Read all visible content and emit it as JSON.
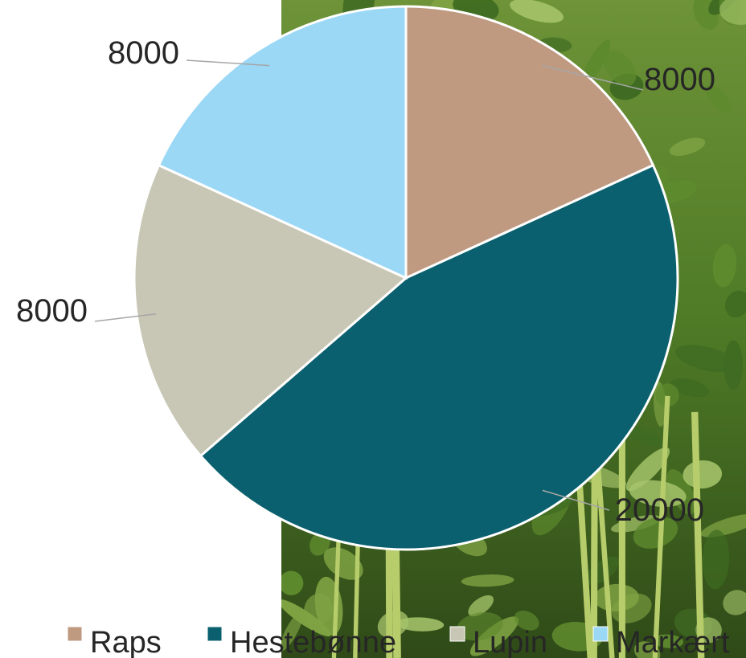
{
  "chart_data": {
    "type": "pie",
    "categories": [
      "Raps",
      "Hestebønne",
      "Lupin",
      "Markært"
    ],
    "values": [
      8000,
      20000,
      8000,
      8000
    ],
    "colors": [
      "#BF9A80",
      "#0A606E",
      "#C8C7B5",
      "#9AD8F6"
    ],
    "data_labels": [
      "8000",
      "20000",
      "8000",
      "8000"
    ],
    "legend": {
      "position": "bottom",
      "entries": [
        "Raps",
        "Hestebønne",
        "Lupin",
        "Markært"
      ]
    },
    "title": ""
  },
  "background": {
    "description_icon": "field-bean-plants-photo-icon",
    "leaf_colors": [
      "#5E8A2E",
      "#7FA343",
      "#A5C46A",
      "#3F6B22"
    ]
  }
}
